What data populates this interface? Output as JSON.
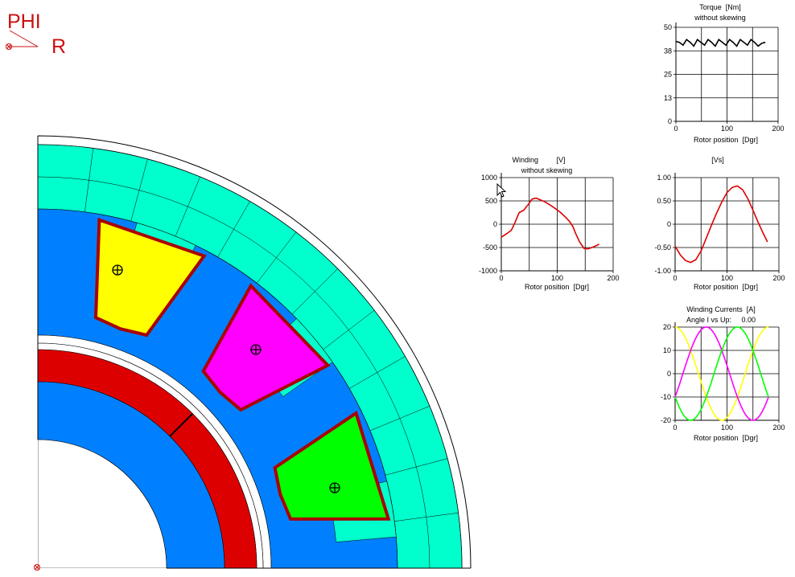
{
  "coords": {
    "phi": "PHI",
    "r": "R"
  },
  "colors": {
    "stator_teeth": "#00ffcc",
    "iron": "#0080ff",
    "magnet": "#dd0000",
    "phase_a": "#ffff00",
    "phase_b": "#ff00ff",
    "phase_c": "#00ff00",
    "coil_border": "#aa0000",
    "torque_curve": "#000000",
    "voltage_curve": "#dd0000",
    "flux_curve": "#dd0000"
  },
  "icons": [
    "origin-marker-icon",
    "current-direction-icon",
    "mouse-cursor-icon"
  ],
  "plots": {
    "torque": {
      "title_line1": "Torque  [Nm]",
      "title_line2": "without skewing",
      "xlabel": "Rotor position  [Dgr]"
    },
    "voltage": {
      "title_line1": "Winding         [V]",
      "title_line2": "without skewing",
      "xlabel": "Rotor position  [Dgr]"
    },
    "flux": {
      "title_line1": "[Vs]",
      "title_line2": "",
      "xlabel": "Rotor position  [Dgr]"
    },
    "currents": {
      "title_line1": "Winding Currents  [A]",
      "title_line2": "Angle I vs Up:     0.00",
      "xlabel": "Rotor position  [Dgr]"
    }
  },
  "chart_data": [
    {
      "id": "torque",
      "type": "line",
      "xlim": [
        0,
        200
      ],
      "ylim": [
        0,
        50
      ],
      "xticks": [
        "0",
        "100",
        "200"
      ],
      "yticks": [
        "0",
        "13",
        "25",
        "38",
        "50"
      ],
      "series": [
        {
          "color": "#000000",
          "x": [
            0,
            7,
            14,
            21,
            28,
            35,
            42,
            49,
            56,
            63,
            70,
            77,
            84,
            91,
            98,
            105,
            112,
            119,
            126,
            133,
            140,
            147,
            154,
            161,
            168,
            175
          ],
          "y": [
            42.5,
            42,
            40.5,
            43.5,
            42,
            40,
            43.5,
            42,
            40.5,
            43.5,
            42,
            40,
            43.5,
            42,
            40.5,
            43.5,
            42,
            40,
            43.5,
            42,
            40.5,
            43.5,
            42,
            40,
            41.5,
            42
          ]
        }
      ]
    },
    {
      "id": "voltage",
      "type": "line",
      "xlim": [
        0,
        200
      ],
      "ylim": [
        -1000,
        1000
      ],
      "xticks": [
        "0",
        "100",
        "200"
      ],
      "yticks": [
        "-1000",
        "-500",
        "0",
        "500",
        "1000"
      ],
      "series": [
        {
          "color": "#dd0000",
          "x": [
            0,
            10,
            18,
            25,
            32,
            40,
            48,
            55,
            62,
            70,
            78,
            86,
            95,
            105,
            115,
            122,
            128,
            133,
            140,
            148,
            155,
            162,
            168,
            175
          ],
          "y": [
            -280,
            -200,
            -130,
            50,
            250,
            300,
            420,
            540,
            560,
            520,
            480,
            420,
            350,
            260,
            150,
            60,
            -50,
            -200,
            -380,
            -520,
            -530,
            -500,
            -470,
            -430
          ]
        }
      ]
    },
    {
      "id": "flux",
      "type": "line",
      "xlim": [
        0,
        200
      ],
      "ylim": [
        -1.0,
        1.0
      ],
      "xticks": [
        "0",
        "100",
        "200"
      ],
      "yticks": [
        "-1.00",
        "-0.50",
        "0",
        "0.50",
        "1.00"
      ],
      "series": [
        {
          "color": "#dd0000",
          "x": [
            0,
            10,
            20,
            30,
            40,
            50,
            60,
            70,
            80,
            90,
            100,
            110,
            120,
            130,
            140,
            150,
            160,
            170,
            178
          ],
          "y": [
            -0.47,
            -0.66,
            -0.78,
            -0.82,
            -0.76,
            -0.57,
            -0.3,
            -0.02,
            0.24,
            0.48,
            0.68,
            0.79,
            0.82,
            0.74,
            0.55,
            0.3,
            0.04,
            -0.2,
            -0.38
          ]
        }
      ]
    },
    {
      "id": "currents",
      "type": "line",
      "xlim": [
        0,
        200
      ],
      "ylim": [
        -20,
        20
      ],
      "xticks": [
        "0",
        "100",
        "200"
      ],
      "yticks": [
        "-20",
        "-10",
        "0",
        "10",
        "20"
      ],
      "series": [
        {
          "color": "#ffff00",
          "amplitude": 20,
          "phase_deg": 0,
          "period_deg": 180
        },
        {
          "color": "#ff00ff",
          "amplitude": 20,
          "phase_deg": -120,
          "period_deg": 180
        },
        {
          "color": "#00ff00",
          "amplitude": 20,
          "phase_deg": 120,
          "period_deg": 180
        }
      ]
    }
  ]
}
